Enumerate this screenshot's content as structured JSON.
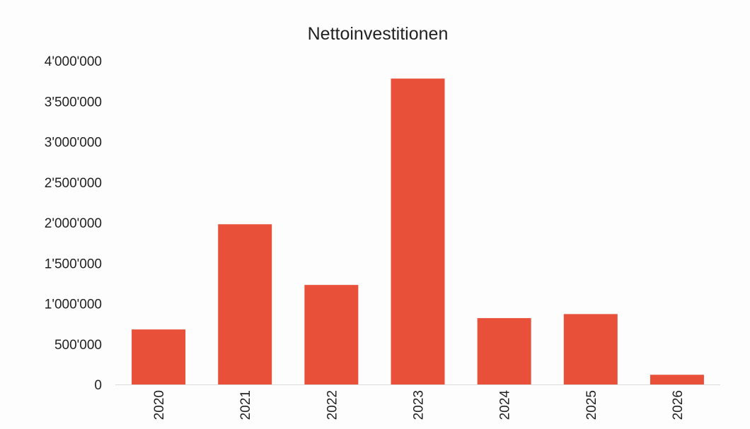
{
  "chart_data": {
    "type": "bar",
    "title": "Nettoinvestitionen",
    "xlabel": "",
    "ylabel": "",
    "categories": [
      "2020",
      "2021",
      "2022",
      "2023",
      "2024",
      "2025",
      "2026"
    ],
    "values": [
      680000,
      1980000,
      1230000,
      3780000,
      820000,
      870000,
      120000
    ],
    "y_ticks": [
      0,
      500000,
      1000000,
      1500000,
      2000000,
      2500000,
      3000000,
      3500000,
      4000000
    ],
    "y_tick_labels": [
      "0",
      "500'000",
      "1'000'000",
      "1'500'000",
      "2'000'000",
      "2'500'000",
      "3'000'000",
      "3'500'000",
      "4'000'000"
    ],
    "ylim": [
      0,
      4000000
    ],
    "grid": false,
    "legend": "none",
    "colors": {
      "bar": "#e8503a",
      "axis": "#d9d9d9",
      "text": "#222222"
    }
  }
}
